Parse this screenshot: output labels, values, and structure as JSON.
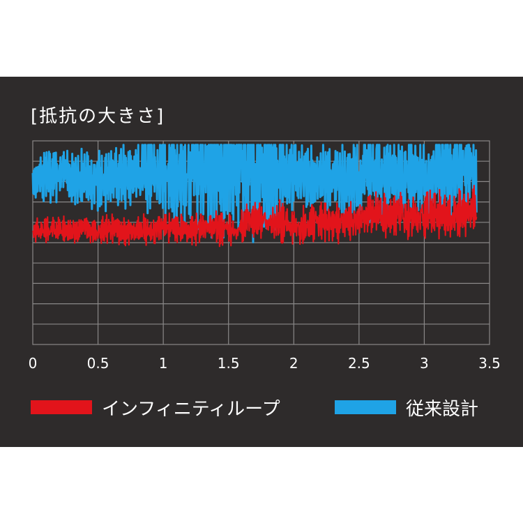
{
  "title": "[抵抗の大きさ]",
  "colors": {
    "background": "#2e2b2b",
    "grid": "#8a8888",
    "axis_text": "#ffffff",
    "infinity_loop": "#e2141b",
    "conventional": "#1fa3e6"
  },
  "chart_data": {
    "type": "line",
    "title": "[抵抗の大きさ]",
    "xlabel": "",
    "ylabel": "",
    "xlim": [
      0,
      3.5
    ],
    "x_ticks": [
      "0",
      "0.5",
      "1",
      "1.5",
      "2",
      "2.5",
      "3",
      "3.5"
    ],
    "grid": true,
    "legend_position": "bottom",
    "series": [
      {
        "name": "インフィニティループ",
        "color": "#e2141b",
        "x": [
          0,
          0.1,
          0.2,
          0.3,
          0.4,
          0.5,
          0.6,
          0.7,
          0.8,
          0.9,
          1.0,
          1.1,
          1.2,
          1.3,
          1.4,
          1.5,
          1.6,
          1.7,
          1.8,
          1.9,
          2.0,
          2.1,
          2.2,
          2.3,
          2.4,
          2.5,
          2.6,
          2.7,
          2.8,
          2.9,
          3.0,
          3.1,
          3.2,
          3.3,
          3.4
        ],
        "center": [
          5.6,
          5.6,
          5.7,
          5.6,
          5.7,
          5.6,
          5.7,
          5.6,
          5.7,
          5.6,
          5.7,
          5.7,
          5.6,
          5.7,
          5.8,
          5.5,
          5.8,
          6.2,
          6.0,
          6.1,
          5.8,
          5.9,
          6.1,
          6.0,
          6.0,
          6.2,
          6.4,
          6.3,
          6.4,
          6.2,
          6.3,
          6.4,
          6.3,
          6.5,
          6.6
        ],
        "amplitude": [
          0.6,
          0.7,
          0.7,
          0.7,
          0.7,
          0.7,
          0.8,
          0.8,
          0.8,
          0.8,
          0.8,
          0.8,
          0.8,
          0.8,
          0.9,
          0.9,
          1.0,
          1.0,
          1.0,
          1.1,
          1.1,
          1.1,
          1.1,
          1.1,
          1.2,
          1.2,
          1.2,
          1.2,
          1.3,
          1.3,
          1.3,
          1.3,
          1.3,
          1.3,
          1.3
        ]
      },
      {
        "name": "従来設計",
        "color": "#1fa3e6",
        "x": [
          0,
          0.1,
          0.2,
          0.3,
          0.4,
          0.5,
          0.6,
          0.7,
          0.8,
          0.9,
          1.0,
          1.1,
          1.2,
          1.3,
          1.4,
          1.5,
          1.6,
          1.7,
          1.8,
          1.9,
          2.0,
          2.1,
          2.2,
          2.3,
          2.4,
          2.5,
          2.6,
          2.7,
          2.8,
          2.9,
          3.0,
          3.1,
          3.2,
          3.3,
          3.4
        ],
        "center": [
          8.0,
          8.3,
          8.3,
          8.2,
          8.1,
          8.0,
          8.1,
          8.2,
          8.3,
          8.4,
          8.5,
          8.5,
          8.6,
          8.6,
          8.7,
          8.6,
          8.5,
          8.5,
          8.4,
          8.3,
          8.4,
          8.2,
          8.1,
          8.1,
          8.2,
          8.2,
          8.3,
          8.4,
          8.3,
          8.2,
          8.3,
          8.4,
          8.5,
          8.4,
          8.3
        ],
        "amplitude": [
          1.0,
          1.4,
          1.4,
          1.5,
          1.6,
          1.6,
          1.7,
          1.8,
          1.9,
          2.1,
          2.4,
          2.8,
          3.3,
          3.5,
          3.6,
          3.4,
          3.4,
          3.5,
          3.4,
          3.0,
          2.2,
          1.8,
          2.0,
          2.1,
          2.2,
          2.5,
          2.3,
          2.1,
          2.0,
          2.2,
          2.3,
          2.6,
          2.7,
          2.5,
          2.2
        ]
      }
    ]
  }
}
